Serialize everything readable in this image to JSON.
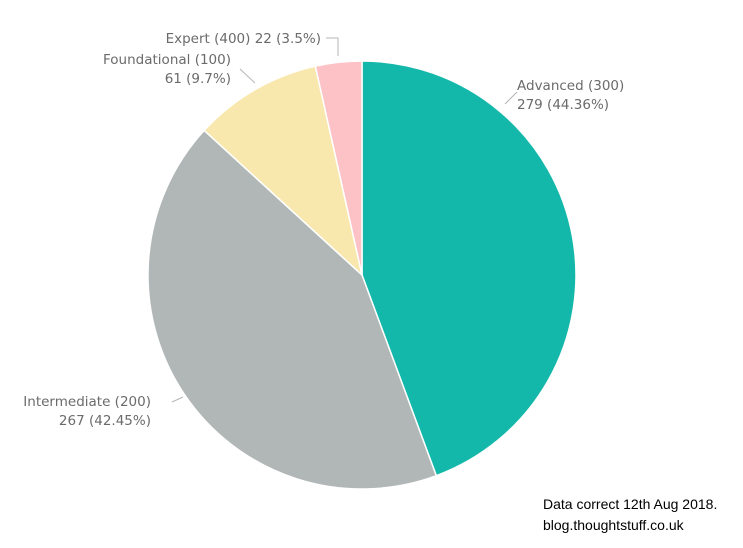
{
  "chart_data": {
    "type": "pie",
    "title": "",
    "categories": [
      "Advanced (300)",
      "Intermediate (200)",
      "Foundational (100)",
      "Expert (400)"
    ],
    "values": [
      279,
      267,
      61,
      22
    ],
    "percent_labels": [
      "279 (44.36%)",
      "267 (42.45%)",
      "61 (9.7%)",
      "22 (3.5%)"
    ],
    "colors": [
      "#14b8aa",
      "#b1b6b6",
      "#f8e8ad",
      "#fdc2c6"
    ],
    "start_angle_deg": 0,
    "direction": "clockwise",
    "legend": "none",
    "label_lines": [
      [
        "Advanced (300)",
        "279 (44.36%)"
      ],
      [
        "Intermediate (200)",
        "267 (42.45%)"
      ],
      [
        "Foundational (100)",
        "61 (9.7%)"
      ],
      [
        "Expert (400) 22 (3.5%)"
      ]
    ]
  },
  "footnote": {
    "line1": "Data correct 12th Aug 2018.",
    "line2": "blog.thoughtstuff.co.uk"
  }
}
